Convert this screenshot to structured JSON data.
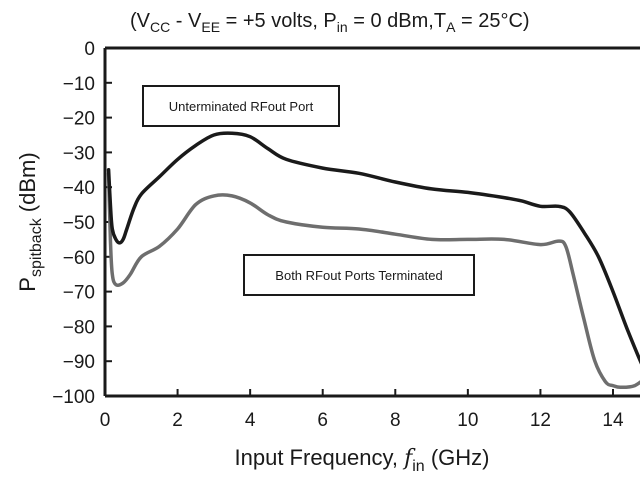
{
  "chart_data": {
    "type": "line",
    "title": {
      "prefix": "(V",
      "vcc_sub": "CC",
      "mid1": " - V",
      "vee_sub": "EE",
      "mid2": " = +5 volts, P",
      "pin_sub": "in",
      "mid3": " = 0 dBm,T",
      "ta_sub": "A",
      "suffix": " = 25°C)"
    },
    "xlabel": {
      "main": "Input Frequency, ",
      "var": "f",
      "sub": "in",
      "unit": " (GHz)"
    },
    "ylabel": {
      "main": "P",
      "sub": "spitback",
      "unit": " (dBm)"
    },
    "xlim": [
      0,
      15
    ],
    "ylim": [
      -100,
      0
    ],
    "xticks": [
      "0",
      "2",
      "4",
      "6",
      "8",
      "10",
      "12",
      "14"
    ],
    "yticks": [
      "0",
      "−10",
      "−20",
      "−30",
      "−40",
      "−50",
      "−60",
      "−70",
      "−80",
      "−90",
      "−100"
    ],
    "grid": false,
    "series": [
      {
        "name": "Unterminated RFout Port",
        "color": "#1a1a1a",
        "x": [
          0.1,
          0.15,
          0.2,
          0.3,
          0.4,
          0.5,
          0.6,
          0.8,
          1.0,
          1.5,
          2.0,
          2.5,
          3.0,
          3.5,
          4.0,
          4.5,
          5.0,
          6.0,
          7.0,
          8.0,
          9.0,
          10.0,
          11.0,
          11.5,
          12.0,
          12.5,
          12.8,
          13.2,
          13.6,
          14.0,
          14.4,
          14.8,
          15.0
        ],
        "y": [
          -35,
          -45,
          -52,
          -55,
          -56,
          -55,
          -52,
          -46,
          -42,
          -37,
          -32,
          -28,
          -25,
          -24.5,
          -25.5,
          -29,
          -32,
          -34.5,
          -36,
          -38.5,
          -40.5,
          -41.5,
          -43,
          -44,
          -45.5,
          -45.5,
          -47,
          -53,
          -60,
          -70,
          -81,
          -91,
          -95
        ]
      },
      {
        "name": "Both RFout Ports Terminated",
        "color": "#6e6e6e",
        "x": [
          0.1,
          0.15,
          0.2,
          0.3,
          0.5,
          0.7,
          1.0,
          1.5,
          2.0,
          2.5,
          3.0,
          3.5,
          4.0,
          4.5,
          5.0,
          6.0,
          7.0,
          8.0,
          9.0,
          10.0,
          11.0,
          12.0,
          12.5,
          12.7,
          12.9,
          13.2,
          13.5,
          13.8,
          14.0,
          14.2,
          14.6,
          15.0
        ],
        "y": [
          -36,
          -55,
          -65,
          -68,
          -67.5,
          -65,
          -60,
          -57,
          -52,
          -45,
          -42.5,
          -42.5,
          -44.5,
          -48,
          -50,
          -51.5,
          -52,
          -53.5,
          -55,
          -55,
          -55,
          -56.5,
          -55.5,
          -57,
          -65,
          -78,
          -90,
          -96,
          -97,
          -97.5,
          -97,
          -94
        ]
      }
    ],
    "annotations": [
      {
        "text": "Unterminated RFout Port",
        "series": 0
      },
      {
        "text": "Both RFout Ports Terminated",
        "series": 1
      }
    ]
  }
}
